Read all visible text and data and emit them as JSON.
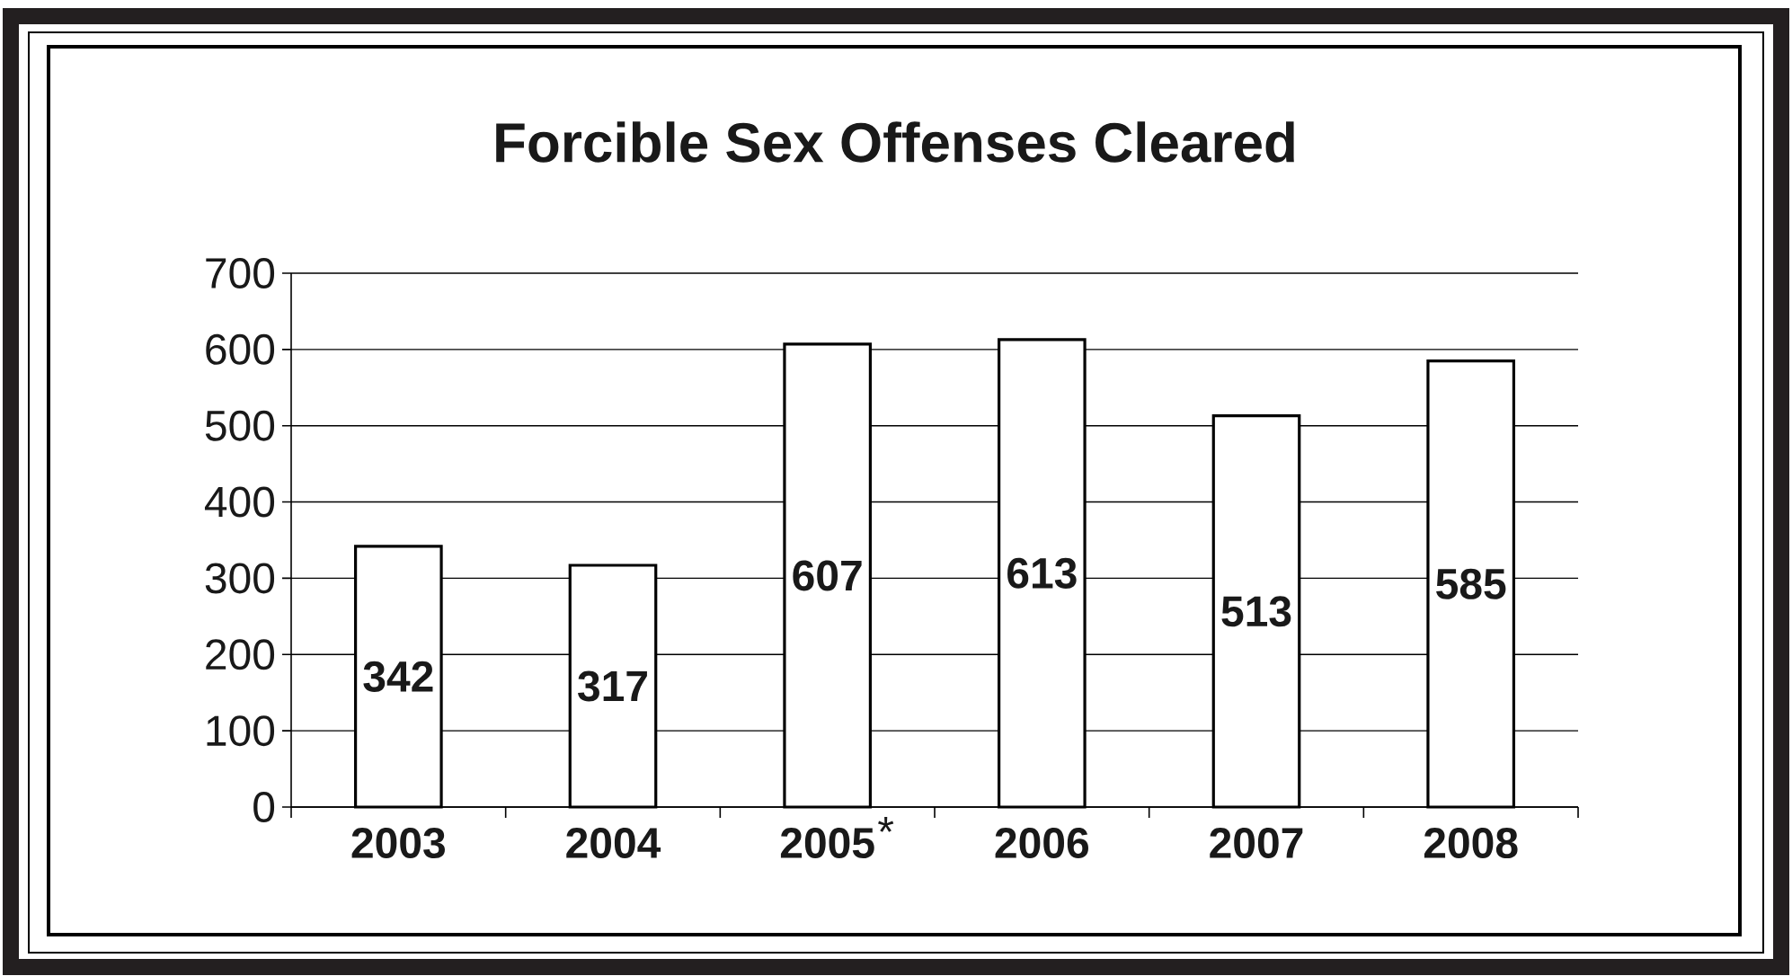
{
  "chart_data": {
    "type": "bar",
    "title": "Forcible Sex Offenses Cleared",
    "categories": [
      "2003",
      "2004",
      "2005",
      "2006",
      "2007",
      "2008"
    ],
    "values": [
      342,
      317,
      607,
      613,
      513,
      585
    ],
    "color": "#ffffff",
    "ylim": [
      0,
      700
    ],
    "yticks": [
      0,
      100,
      200,
      300,
      400,
      500,
      600,
      700
    ],
    "grid": "y",
    "data_labels": true,
    "annotations": [
      "*"
    ]
  }
}
